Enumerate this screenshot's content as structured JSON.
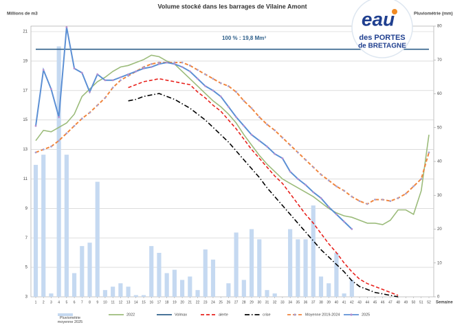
{
  "chart_data": {
    "type": "combo",
    "title": "Volume stocké dans les barrages de Vilaine Amont",
    "y_label": "Millions de m3",
    "y2_label": "Pluviométrie (mm)",
    "x_label": "Semaine",
    "annotation": "100 % : 19,8 Mm³",
    "logo": {
      "word": "eau",
      "line1": "des PORTES",
      "line2": "de BRETAGNE"
    },
    "x": [
      1,
      2,
      3,
      4,
      5,
      6,
      7,
      8,
      9,
      10,
      11,
      12,
      13,
      14,
      15,
      16,
      17,
      18,
      19,
      20,
      21,
      22,
      23,
      24,
      25,
      26,
      27,
      28,
      29,
      30,
      31,
      32,
      33,
      34,
      35,
      36,
      37,
      38,
      39,
      40,
      41,
      42,
      43,
      44,
      45,
      46,
      47,
      48,
      49,
      50,
      51,
      52
    ],
    "xlim": [
      1,
      52
    ],
    "ylim": [
      3,
      21
    ],
    "yticks": [
      3,
      5,
      7,
      9,
      11,
      13,
      15,
      17,
      19,
      21
    ],
    "y2lim": [
      0,
      80
    ],
    "y2ticks": [
      0,
      10,
      20,
      30,
      40,
      50,
      60,
      70,
      80
    ],
    "grid": true,
    "series": [
      {
        "name": "Pluviométrie moyenne 2025",
        "type": "bar",
        "axis": "y2",
        "color": "#c5d9f1",
        "values": [
          39,
          42,
          1,
          74,
          42,
          7,
          15,
          16,
          34,
          2,
          3,
          4,
          3,
          0.5,
          0.5,
          15,
          13,
          7,
          8,
          5,
          6,
          2,
          14,
          11,
          0,
          4,
          19,
          5,
          20,
          17,
          2,
          1,
          0,
          20,
          17,
          17,
          27,
          6,
          4,
          13,
          1,
          5,
          null,
          null,
          null,
          null,
          null,
          null,
          null,
          null,
          null,
          null
        ]
      },
      {
        "name": "2022",
        "type": "line",
        "color": "#9bbb7a",
        "dash": "solid",
        "values": [
          13.6,
          14.3,
          14.2,
          14.5,
          14.8,
          15.4,
          16.6,
          17.1,
          17.6,
          17.9,
          18.3,
          18.6,
          18.7,
          18.9,
          19.1,
          19.4,
          19.3,
          19.0,
          18.8,
          18.3,
          17.8,
          17.3,
          16.8,
          16.3,
          15.9,
          15.4,
          14.8,
          14.0,
          13.3,
          12.6,
          12.0,
          11.5,
          11.0,
          10.7,
          10.4,
          10.1,
          9.8,
          9.4,
          9.0,
          8.7,
          8.5,
          8.4,
          8.2,
          8.0,
          8.0,
          7.9,
          8.2,
          8.9,
          8.9,
          8.6,
          10.2,
          14.0
        ]
      },
      {
        "name": "Volmax",
        "type": "line",
        "color": "#2e5f8a",
        "dash": "solid",
        "values": [
          19.8,
          19.8,
          19.8,
          19.8,
          19.8,
          19.8,
          19.8,
          19.8,
          19.8,
          19.8,
          19.8,
          19.8,
          19.8,
          19.8,
          19.8,
          19.8,
          19.8,
          19.8,
          19.8,
          19.8,
          19.8,
          19.8,
          19.8,
          19.8,
          19.8,
          19.8,
          19.8,
          19.8,
          19.8,
          19.8,
          19.8,
          19.8,
          19.8,
          19.8,
          19.8,
          19.8,
          19.8,
          19.8,
          19.8,
          19.8,
          19.8,
          19.8,
          19.8,
          19.8,
          19.8,
          19.8,
          19.8,
          19.8,
          19.8,
          19.8,
          19.8,
          19.8
        ]
      },
      {
        "name": "alerte",
        "type": "line",
        "color": "#e8211c",
        "dash": "dashed",
        "values": [
          null,
          null,
          null,
          null,
          null,
          null,
          null,
          null,
          null,
          null,
          null,
          null,
          17.2,
          17.4,
          17.6,
          17.7,
          17.8,
          17.7,
          17.6,
          17.5,
          17.4,
          16.9,
          16.5,
          16.0,
          15.6,
          15.0,
          14.4,
          13.7,
          13.0,
          12.4,
          11.8,
          11.2,
          10.7,
          10.0,
          9.3,
          8.6,
          8.0,
          7.3,
          6.6,
          6.0,
          5.3,
          4.7,
          4.2,
          3.9,
          3.7,
          3.5,
          3.3,
          3.1,
          null,
          null,
          null,
          null
        ]
      },
      {
        "name": "crise",
        "type": "line",
        "color": "#000000",
        "dash": "dashdot",
        "values": [
          null,
          null,
          null,
          null,
          null,
          null,
          null,
          null,
          null,
          null,
          null,
          null,
          16.3,
          16.4,
          16.6,
          16.7,
          16.8,
          16.6,
          16.4,
          16.1,
          15.8,
          15.4,
          15.0,
          14.5,
          14.0,
          13.5,
          12.9,
          12.3,
          11.7,
          11.1,
          10.4,
          9.8,
          9.2,
          8.6,
          8.0,
          7.4,
          6.8,
          6.2,
          5.7,
          5.2,
          4.7,
          4.1,
          3.7,
          3.5,
          3.3,
          3.2,
          3.1,
          3.0,
          null,
          null,
          null,
          null
        ]
      },
      {
        "name": "Moyenne 2019-2024",
        "type": "line",
        "color": "#f0843c",
        "dash": "dashed",
        "marker": "#a9a0cf",
        "values": [
          12.8,
          13.0,
          13.2,
          13.6,
          14.1,
          14.6,
          15.1,
          15.5,
          16.0,
          16.5,
          17.2,
          17.7,
          18.0,
          18.3,
          18.6,
          18.8,
          18.9,
          18.9,
          18.9,
          18.9,
          18.7,
          18.4,
          18.1,
          17.8,
          17.5,
          17.3,
          16.9,
          16.3,
          15.8,
          15.2,
          14.7,
          14.3,
          13.8,
          13.3,
          12.8,
          12.3,
          11.8,
          11.3,
          10.9,
          10.5,
          10.2,
          9.8,
          9.5,
          9.3,
          9.6,
          9.6,
          9.5,
          9.7,
          10.0,
          10.5,
          11.0,
          12.8
        ]
      },
      {
        "name": "2025",
        "type": "line",
        "color": "#5b8fd4",
        "dash": "solid",
        "marker": "#b48fd0",
        "values": [
          14.6,
          18.4,
          17.1,
          15.2,
          21.3,
          18.5,
          18.2,
          16.9,
          18.1,
          17.7,
          17.7,
          17.9,
          18.1,
          18.3,
          18.5,
          18.6,
          18.8,
          18.9,
          18.8,
          18.6,
          18.3,
          17.8,
          17.3,
          17.0,
          16.6,
          15.9,
          15.2,
          14.6,
          14.0,
          13.6,
          13.2,
          12.7,
          12.4,
          11.5,
          11.0,
          10.6,
          10.1,
          9.7,
          9.1,
          8.6,
          8.1,
          7.6,
          null,
          null,
          null,
          null,
          null,
          null,
          null,
          null,
          null,
          null
        ]
      }
    ]
  }
}
